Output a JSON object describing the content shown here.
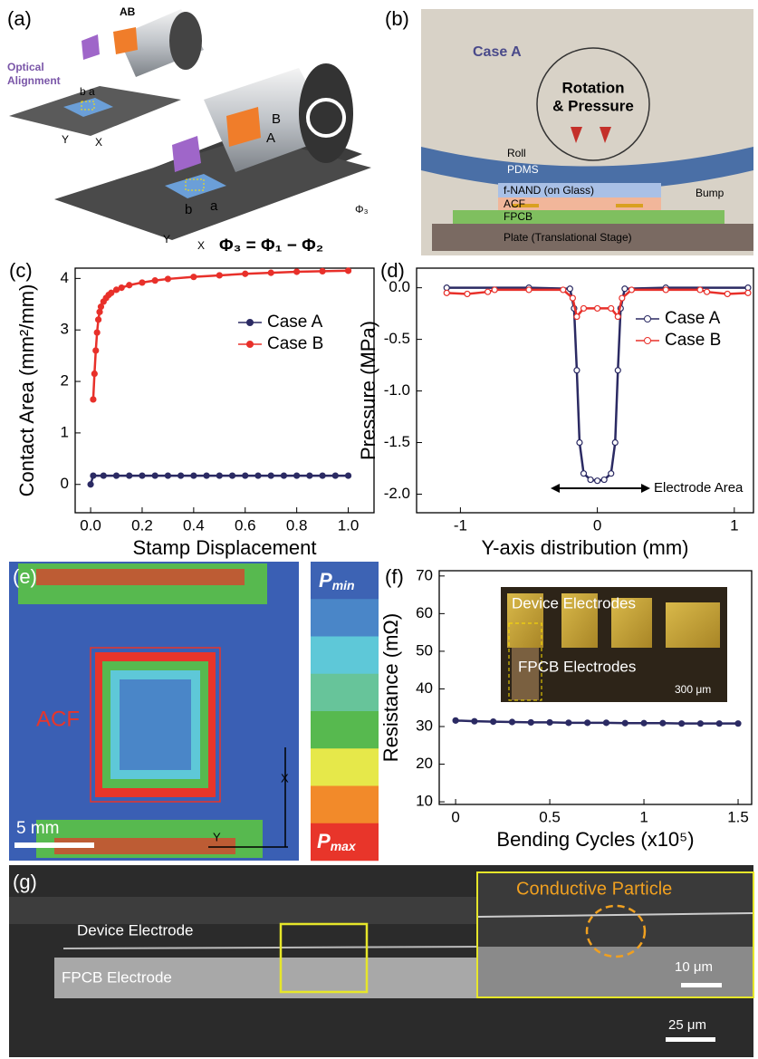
{
  "panel_a": {
    "label": "(a)",
    "top_AB": "AB",
    "optical": "Optical",
    "alignment": "Alignment",
    "top_ba": "b a",
    "top_Y": "Y",
    "top_X": "X",
    "B": "B",
    "A": "A",
    "b": "b",
    "a": "a",
    "Y": "Y",
    "X": "X",
    "phi3": "Φ₃",
    "equation": "Φ₃ = Φ₁ − Φ₂"
  },
  "panel_b": {
    "label": "(b)",
    "case": "Case A",
    "rotation": "Rotation",
    "pressure": "& Pressure",
    "roll": "Roll",
    "pdms": "PDMS",
    "fnand": "f-NAND (on Glass)",
    "acf": "ACF",
    "fpcb": "FPCB",
    "bump": "Bump",
    "plate": "Plate (Translational Stage)"
  },
  "chart_data": [
    {
      "panel_label": "(c)",
      "type": "line",
      "marker": "filled",
      "xlabel": "Stamp Displacement",
      "ylabel": "Contact Area (mm²/mm)",
      "xlim": [
        -0.06,
        1.1
      ],
      "xticks": [
        {
          "value": 0,
          "label": "0.0"
        },
        0.2,
        0.4,
        0.6,
        0.8,
        {
          "value": 1,
          "label": "1.0"
        }
      ],
      "ylim": [
        -0.55,
        4.2
      ],
      "yticks": [
        0,
        1,
        2,
        3,
        4
      ],
      "legend": "right",
      "series": [
        {
          "name": "Case A",
          "color": "#2b2a63",
          "x": [
            0,
            0.01,
            0.05,
            0.1,
            0.15,
            0.2,
            0.25,
            0.3,
            0.35,
            0.4,
            0.45,
            0.5,
            0.55,
            0.6,
            0.65,
            0.7,
            0.75,
            0.8,
            0.85,
            0.9,
            0.95,
            1.0
          ],
          "values": [
            0,
            0.17,
            0.17,
            0.17,
            0.17,
            0.17,
            0.17,
            0.17,
            0.17,
            0.17,
            0.17,
            0.17,
            0.17,
            0.17,
            0.17,
            0.17,
            0.17,
            0.17,
            0.17,
            0.17,
            0.17,
            0.17
          ]
        },
        {
          "name": "Case B",
          "color": "#e8302a",
          "x": [
            0.01,
            0.015,
            0.02,
            0.025,
            0.03,
            0.035,
            0.04,
            0.05,
            0.06,
            0.07,
            0.08,
            0.1,
            0.12,
            0.15,
            0.2,
            0.25,
            0.3,
            0.4,
            0.5,
            0.6,
            0.7,
            0.8,
            0.9,
            1.0
          ],
          "values": [
            1.65,
            2.15,
            2.6,
            2.95,
            3.2,
            3.35,
            3.45,
            3.55,
            3.62,
            3.68,
            3.72,
            3.78,
            3.82,
            3.87,
            3.92,
            3.96,
            3.99,
            4.03,
            4.06,
            4.09,
            4.11,
            4.13,
            4.14,
            4.15
          ]
        }
      ]
    },
    {
      "panel_label": "(d)",
      "type": "line",
      "marker": "open",
      "xlabel": "Y-axis distribution (mm)",
      "ylabel": "Pressure (MPa)",
      "xlim": [
        -1.32,
        1.14
      ],
      "xticks": [
        -1,
        0,
        1
      ],
      "ylim": [
        -2.18,
        0.19
      ],
      "yticks": [
        {
          "value": 0,
          "label": "0.0"
        },
        -0.5,
        {
          "value": -1,
          "label": "-1.0"
        },
        -1.5,
        {
          "value": -2,
          "label": "-2.0"
        }
      ],
      "legend": "upper right",
      "annotation": "Electrode Area",
      "series": [
        {
          "name": "Case A",
          "color": "#2b2a63",
          "x": [
            -1.1,
            -0.5,
            -0.2,
            -0.17,
            -0.15,
            -0.13,
            -0.1,
            -0.05,
            0,
            0.05,
            0.1,
            0.13,
            0.15,
            0.17,
            0.2,
            0.5,
            1.1
          ],
          "values": [
            0,
            0,
            -0.01,
            -0.2,
            -0.8,
            -1.5,
            -1.8,
            -1.86,
            -1.87,
            -1.86,
            -1.8,
            -1.5,
            -0.8,
            -0.2,
            -0.01,
            0,
            0
          ]
        },
        {
          "name": "Case B",
          "color": "#e8302a",
          "x": [
            -1.1,
            -0.95,
            -0.8,
            -0.75,
            -0.5,
            -0.25,
            -0.18,
            -0.15,
            -0.1,
            0,
            0.1,
            0.15,
            0.18,
            0.25,
            0.5,
            0.75,
            0.8,
            0.95,
            1.1
          ],
          "values": [
            -0.05,
            -0.06,
            -0.04,
            -0.02,
            -0.02,
            -0.02,
            -0.1,
            -0.28,
            -0.2,
            -0.2,
            -0.2,
            -0.28,
            -0.1,
            -0.02,
            -0.02,
            -0.02,
            -0.04,
            -0.06,
            -0.05
          ]
        }
      ]
    },
    {
      "panel_label": "(f)",
      "type": "line",
      "marker": "filled",
      "xlabel": "Bending Cycles (x10⁵)",
      "ylabel": "Resistance (mΩ)",
      "xlim": [
        -0.087,
        1.572
      ],
      "xticks": [
        0,
        0.5,
        1,
        1.5
      ],
      "ylim": [
        9.3,
        71.4
      ],
      "yticks": [
        10,
        20,
        30,
        40,
        50,
        60,
        70
      ],
      "series": [
        {
          "color": "#2b2a63",
          "x": [
            0,
            0.1,
            0.2,
            0.3,
            0.4,
            0.5,
            0.6,
            0.7,
            0.8,
            0.9,
            1.0,
            1.1,
            1.2,
            1.3,
            1.4,
            1.5
          ],
          "values": [
            31.6,
            31.4,
            31.3,
            31.2,
            31.1,
            31.1,
            31.0,
            31.0,
            31.0,
            30.9,
            30.9,
            30.9,
            30.8,
            30.8,
            30.8,
            30.8
          ]
        }
      ]
    }
  ],
  "panel_e": {
    "label": "(e)",
    "acf": "ACF",
    "scale": "5 mm",
    "x": "X",
    "y": "Y",
    "p_symbol": "P",
    "p_min": "min",
    "p_max": "max"
  },
  "panel_f_inset": {
    "device": "Device Electrodes",
    "fpcb": "FPCB Electrodes",
    "scale": "300 μm"
  },
  "panel_g": {
    "label": "(g)",
    "device": "Device Electrode",
    "fpcb": "FPCB Electrode",
    "particle": "Conductive Particle",
    "scale_inset": "10 μm",
    "scale": "25 μm"
  }
}
